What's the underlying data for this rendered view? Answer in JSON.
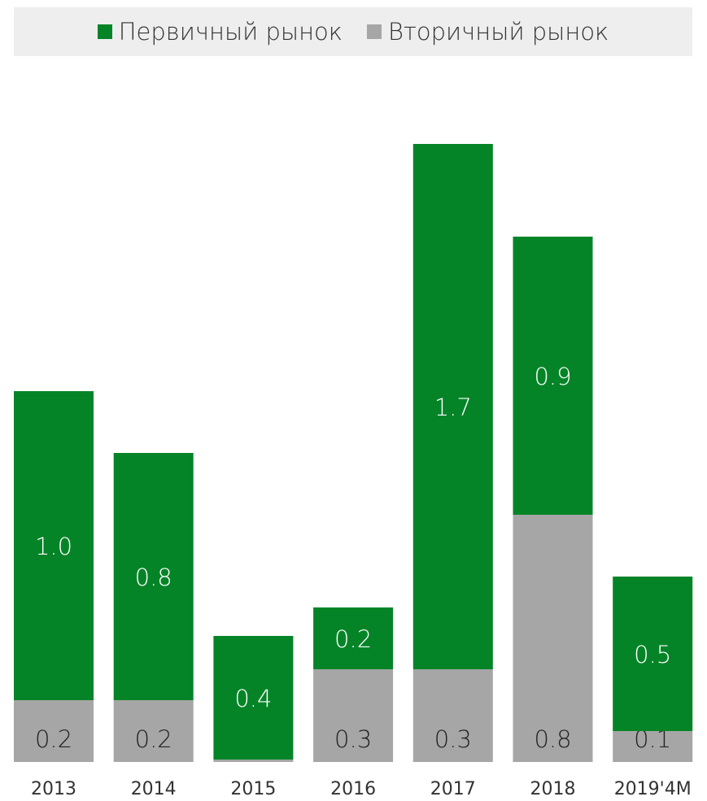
{
  "chart_data": {
    "type": "bar",
    "stacked": true,
    "categories": [
      "2013",
      "2014",
      "2015",
      "2016",
      "2017",
      "2018",
      "2019'4M"
    ],
    "series": [
      {
        "name": "Вторичный рынок",
        "color": "#a6a6a6",
        "text_color": "#222222",
        "values": [
          0.2,
          0.2,
          0.0,
          0.3,
          0.3,
          0.8,
          0.1
        ],
        "labels": [
          "0.2",
          "0.2",
          "",
          "0.3",
          "0.3",
          "0.8",
          "0.1"
        ]
      },
      {
        "name": "Первичный рынок",
        "color": "#058427",
        "text_color": "#ffffff",
        "values": [
          1.0,
          0.8,
          0.4,
          0.2,
          1.7,
          0.9,
          0.5
        ],
        "labels": [
          "1.0",
          "0.8",
          "0.4",
          "0.2",
          "1.7",
          "0.9",
          "0.5"
        ]
      }
    ],
    "legend": [
      {
        "name": "Первичный рынок",
        "color": "#058427"
      },
      {
        "name": "Вторичный рынок",
        "color": "#a6a6a6"
      }
    ],
    "legend_position": "top",
    "grid": false
  }
}
